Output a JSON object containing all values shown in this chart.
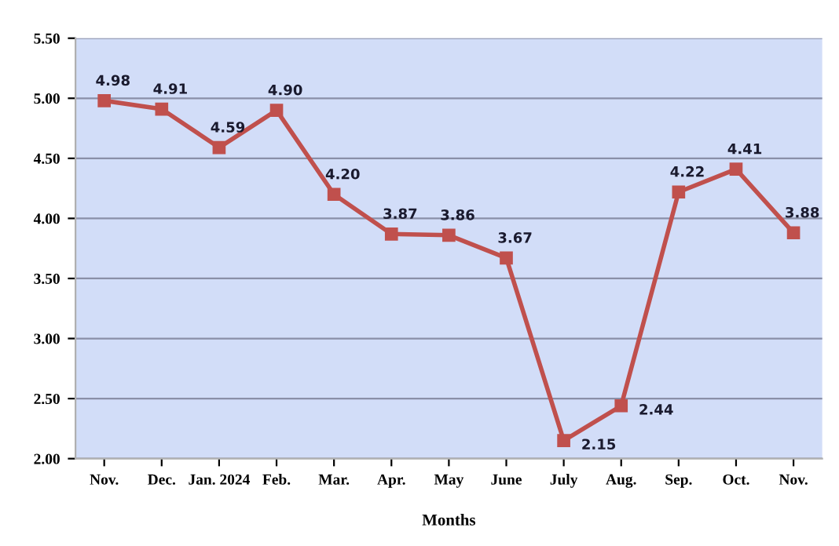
{
  "chart_data": {
    "type": "line",
    "xlabel": "Months",
    "categories": [
      "Nov.",
      "Dec.",
      "Jan. 2024",
      "Feb.",
      "Mar.",
      "Apr.",
      "May",
      "June",
      "July",
      "Aug.",
      "Sep.",
      "Oct.",
      "Nov."
    ],
    "series": [
      {
        "color": "#c0504d",
        "values": [
          4.98,
          4.91,
          4.59,
          4.9,
          4.2,
          3.87,
          3.86,
          3.67,
          2.15,
          2.44,
          4.22,
          4.41,
          3.88
        ],
        "value_labels": [
          "4.98",
          "4.91",
          "4.59",
          "4.90",
          "4.20",
          "3.87",
          "3.86",
          "3.67",
          "2.15",
          "2.44",
          "4.22",
          "4.41",
          "3.88"
        ]
      }
    ],
    "ylim": [
      2.0,
      5.5
    ],
    "yticks": [
      {
        "value": 2.0,
        "label": "2.00"
      },
      {
        "value": 2.5,
        "label": "2.50"
      },
      {
        "value": 3.0,
        "label": "3.00"
      },
      {
        "value": 3.5,
        "label": "3.50"
      },
      {
        "value": 4.0,
        "label": "4.00"
      },
      {
        "value": 4.5,
        "label": "4.50"
      },
      {
        "value": 5.0,
        "label": "5.00"
      },
      {
        "value": 5.5,
        "label": "5.50"
      }
    ],
    "grid": "y",
    "marker": "square",
    "line_style": "solid"
  }
}
